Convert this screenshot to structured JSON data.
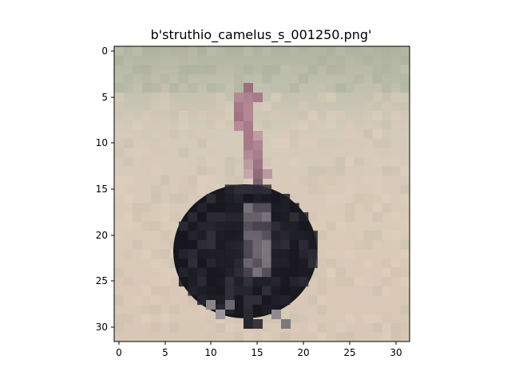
{
  "figure": {
    "title": "b'struthio_camelus_s_001250.png'"
  },
  "image": {
    "subject": "ostrich",
    "grid_width": 32,
    "grid_height": 32
  },
  "axes": {
    "x_ticks": [
      "0",
      "5",
      "10",
      "15",
      "20",
      "25",
      "30"
    ],
    "y_ticks": [
      "0",
      "5",
      "10",
      "15",
      "20",
      "25",
      "30"
    ]
  },
  "colors": {
    "background_top": "#b2b5a2",
    "ground_light": "#dccbb8",
    "ground_mid": "#d2c1ad",
    "neck_pink": "#ad8090",
    "neck_dark": "#9b6678",
    "body_black": "#1a1a22",
    "body_dark": "#25252f",
    "wing_gray": "#7a7276",
    "leg_gray": "#8c8a8c"
  }
}
